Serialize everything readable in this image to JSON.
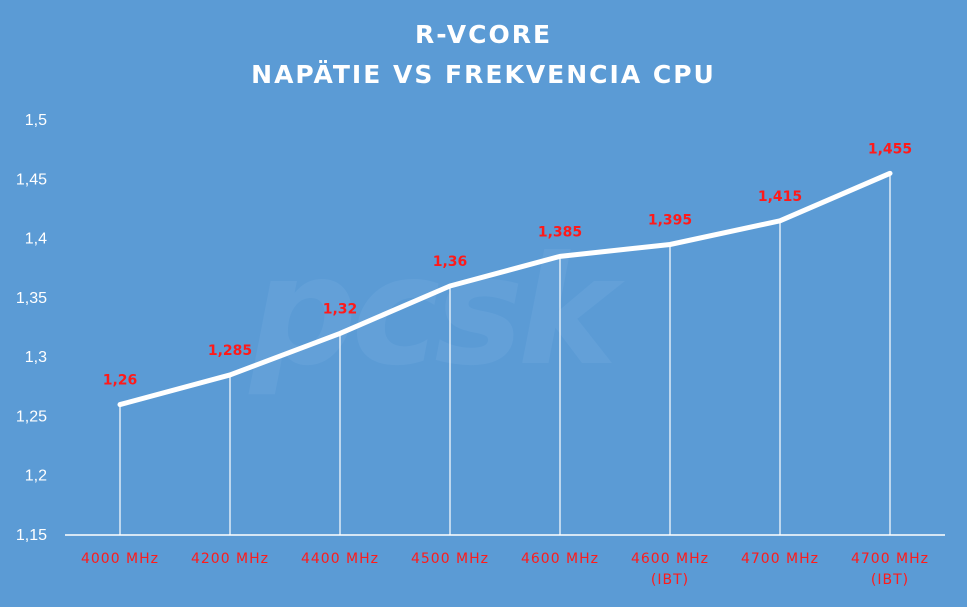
{
  "watermark": "pcsk",
  "colors": {
    "background": "#5b9bd5",
    "line": "#ffffff",
    "labels": "#ff1a1a",
    "axis": "#ffffff"
  },
  "chart_data": {
    "type": "line",
    "title": "R-VCORE",
    "subtitle": "NAPÄTIE VS FREKVENCIA CPU",
    "xlabel": "",
    "ylabel": "",
    "categories": [
      [
        "4000 MHz"
      ],
      [
        "4200 MHz"
      ],
      [
        "4400 MHz"
      ],
      [
        "4500 MHz"
      ],
      [
        "4600 MHz"
      ],
      [
        "4600 MHz",
        "(IBT)"
      ],
      [
        "4700 MHz"
      ],
      [
        "4700 MHz",
        "(IBT)"
      ]
    ],
    "values": [
      1.26,
      1.285,
      1.32,
      1.36,
      1.385,
      1.395,
      1.415,
      1.455
    ],
    "data_labels": [
      "1,26",
      "1,285",
      "1,32",
      "1,36",
      "1,385",
      "1,395",
      "1,415",
      "1,455"
    ],
    "ylim": [
      1.15,
      1.5
    ],
    "yticks": [
      1.15,
      1.2,
      1.25,
      1.3,
      1.35,
      1.4,
      1.45,
      1.5
    ],
    "ytick_labels": [
      "1,15",
      "1,2",
      "1,25",
      "1,3",
      "1,35",
      "1,4",
      "1,45",
      "1,5"
    ],
    "drop_lines": true,
    "grid": false,
    "legend": "none"
  }
}
